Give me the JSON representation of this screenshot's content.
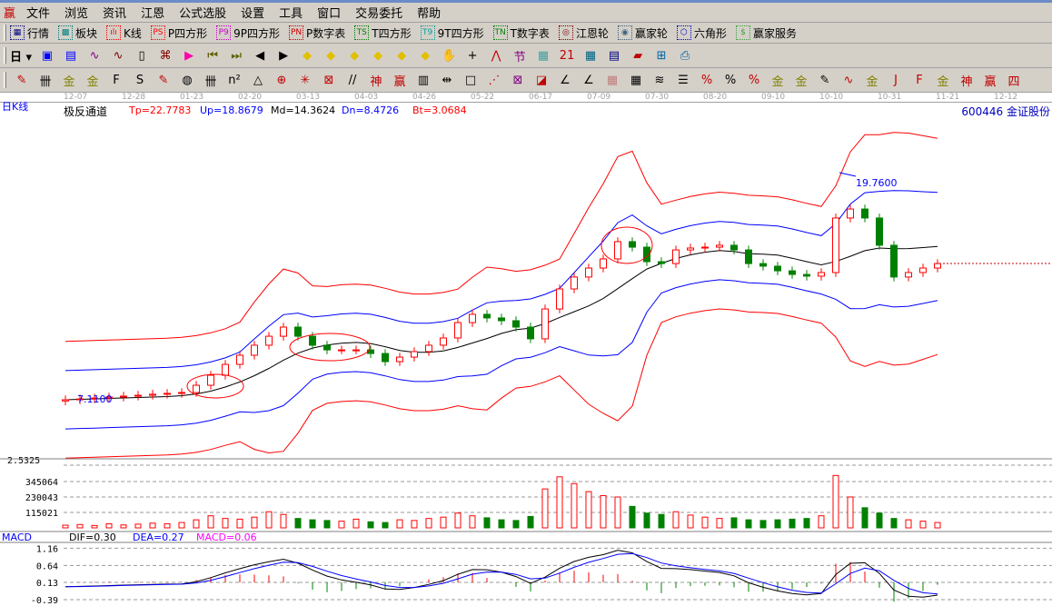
{
  "menu": {
    "logo": "赢",
    "items": [
      "文件",
      "浏览",
      "资讯",
      "江恩",
      "公式选股",
      "设置",
      "工具",
      "窗口",
      "交易委托",
      "帮助"
    ]
  },
  "toolbar1": [
    {
      "icon": "quotes-table-icon",
      "glyph": "▦",
      "label": "行情",
      "color": "#000080"
    },
    {
      "icon": "sector-block-icon",
      "glyph": "▩",
      "label": "板块",
      "color": "#008080"
    },
    {
      "icon": "kline-icon",
      "glyph": "ılı",
      "label": "K线",
      "color": "#ff0000"
    },
    {
      "icon": "ps-icon",
      "glyph": "PS",
      "label": "P四方形",
      "color": "#ff0000"
    },
    {
      "icon": "p9-icon",
      "glyph": "P9",
      "label": "9P四方形",
      "color": "#cc00cc"
    },
    {
      "icon": "pn-icon",
      "glyph": "PN",
      "label": "P数字表",
      "color": "#cc0000"
    },
    {
      "icon": "ts-icon",
      "glyph": "TS",
      "label": "T四方形",
      "color": "#008000"
    },
    {
      "icon": "t9-icon",
      "glyph": "T9",
      "label": "9T四方形",
      "color": "#00a0a0"
    },
    {
      "icon": "tn-icon",
      "glyph": "TN",
      "label": "T数字表",
      "color": "#008000"
    },
    {
      "icon": "gann-wheel-icon",
      "glyph": "◎",
      "label": "江恩轮",
      "color": "#800000"
    },
    {
      "icon": "winner-wheel-icon",
      "glyph": "◉",
      "label": "赢家轮",
      "color": "#406080"
    },
    {
      "icon": "hexagon-icon",
      "glyph": "⬡",
      "label": "六角形",
      "color": "#0000c0"
    },
    {
      "icon": "dollar-icon",
      "glyph": "$",
      "label": "赢家服务",
      "color": "#40a040"
    }
  ],
  "toolbar2": {
    "period": "日",
    "icons": [
      {
        "icon": "chart-type-icon",
        "glyph": "▣",
        "color": "#0000ff"
      },
      {
        "icon": "notes-icon",
        "glyph": "▤",
        "color": "#0000ff"
      },
      {
        "icon": "indicator3-icon",
        "glyph": "∿",
        "color": "#800080"
      },
      {
        "icon": "indicator9-icon",
        "glyph": "∿",
        "color": "#800000"
      },
      {
        "icon": "candle-style-icon",
        "glyph": "▯",
        "color": "#000"
      },
      {
        "icon": "restore-icon",
        "glyph": "⌘",
        "color": "#800000"
      },
      {
        "icon": "flag-icon",
        "glyph": "▶",
        "color": "#ff00aa"
      },
      {
        "icon": "first-icon",
        "glyph": "⏮",
        "color": "#606000"
      },
      {
        "icon": "last-icon",
        "glyph": "⏭",
        "color": "#606000"
      },
      {
        "icon": "prev-icon",
        "glyph": "◀",
        "color": "#000"
      },
      {
        "icon": "next-icon",
        "glyph": "▶",
        "color": "#000"
      },
      {
        "icon": "move-left-icon",
        "glyph": "◆",
        "color": "#e0c000"
      },
      {
        "icon": "move-right-icon",
        "glyph": "◆",
        "color": "#e0c000"
      },
      {
        "icon": "expand-icon",
        "glyph": "◆",
        "color": "#e0c000"
      },
      {
        "icon": "shrink-icon",
        "glyph": "◆",
        "color": "#e0c000"
      },
      {
        "icon": "zoom-in-icon",
        "glyph": "◆",
        "color": "#e0c000"
      },
      {
        "icon": "zoom-out-icon",
        "glyph": "◆",
        "color": "#e0c000"
      },
      {
        "icon": "hand-icon",
        "glyph": "✋",
        "color": "#000"
      },
      {
        "icon": "crosshair-icon",
        "glyph": "+",
        "color": "#000"
      },
      {
        "icon": "line-icon",
        "glyph": "⋀",
        "color": "#c00000"
      },
      {
        "icon": "festival-icon",
        "glyph": "节",
        "color": "#800080"
      },
      {
        "icon": "pattern-icon",
        "glyph": "▦",
        "color": "#40a0a0"
      },
      {
        "icon": "calendar-icon",
        "glyph": "21",
        "color": "#c00000"
      },
      {
        "icon": "calculator-icon",
        "glyph": "▦",
        "color": "#006080"
      },
      {
        "icon": "document-icon",
        "glyph": "▤",
        "color": "#000080"
      },
      {
        "icon": "save-icon",
        "glyph": "▰",
        "color": "#c00000"
      },
      {
        "icon": "network-icon",
        "glyph": "⊞",
        "color": "#0060a0"
      },
      {
        "icon": "print-icon",
        "glyph": "⎙",
        "color": "#0060a0"
      }
    ]
  },
  "toolbar3": [
    {
      "icon": "pen-icon",
      "glyph": "✎",
      "color": "#c00000"
    },
    {
      "icon": "parallel-icon",
      "glyph": "卌",
      "color": "#000"
    },
    {
      "icon": "gold-line-icon",
      "glyph": "金",
      "color": "#808000"
    },
    {
      "icon": "gold-line2-icon",
      "glyph": "金",
      "color": "#808000"
    },
    {
      "icon": "f-line-icon",
      "glyph": "F",
      "color": "#000"
    },
    {
      "icon": "spiral-icon",
      "glyph": "S",
      "color": "#000"
    },
    {
      "icon": "brush-icon",
      "glyph": "✎",
      "color": "#c00000"
    },
    {
      "icon": "circle-icon",
      "glyph": "◍",
      "color": "#000"
    },
    {
      "icon": "grid-lines-icon",
      "glyph": "卌",
      "color": "#000"
    },
    {
      "icon": "n2-icon",
      "glyph": "n²",
      "color": "#000"
    },
    {
      "icon": "triangle-icon",
      "glyph": "△",
      "color": "#000"
    },
    {
      "icon": "target-icon",
      "glyph": "⊕",
      "color": "#c00000"
    },
    {
      "icon": "web-icon",
      "glyph": "✳",
      "color": "#c00000"
    },
    {
      "icon": "box-web-icon",
      "glyph": "⊠",
      "color": "#c00000"
    },
    {
      "icon": "quote-lines-icon",
      "glyph": "//",
      "color": "#000"
    },
    {
      "icon": "god-icon",
      "glyph": "神",
      "color": "#c00000"
    },
    {
      "icon": "win-icon",
      "glyph": "赢",
      "color": "#c00000"
    },
    {
      "icon": "table-icon",
      "glyph": "▥",
      "color": "#000"
    },
    {
      "icon": "width-icon",
      "glyph": "⇹",
      "color": "#000"
    },
    {
      "icon": "box-icon",
      "glyph": "□",
      "color": "#000"
    },
    {
      "icon": "fan-icon",
      "glyph": "⋰",
      "color": "#c00000"
    },
    {
      "icon": "gann-box-icon",
      "glyph": "⊠",
      "color": "#800080"
    },
    {
      "icon": "gann-fan-icon",
      "glyph": "◪",
      "color": "#c00000"
    },
    {
      "icon": "angle-icon",
      "glyph": "∠",
      "color": "#000"
    },
    {
      "icon": "angle2-icon",
      "glyph": "∠",
      "color": "#000"
    },
    {
      "icon": "grid-icon",
      "glyph": "▦",
      "color": "#c08080"
    },
    {
      "icon": "grid2-icon",
      "glyph": "▦",
      "color": "#000"
    },
    {
      "icon": "hatch-icon",
      "glyph": "≋",
      "color": "#000"
    },
    {
      "icon": "ruler-icon",
      "glyph": "☰",
      "color": "#000"
    },
    {
      "icon": "percent-line-icon",
      "glyph": "%",
      "color": "#c00000"
    },
    {
      "icon": "percent-icon",
      "glyph": "%",
      "color": "#000"
    },
    {
      "icon": "percent-lines-icon",
      "glyph": "%",
      "color": "#c00000"
    },
    {
      "icon": "gold-circle-icon",
      "glyph": "金",
      "color": "#808000"
    },
    {
      "icon": "gold-lines-icon",
      "glyph": "金",
      "color": "#808000"
    },
    {
      "icon": "pen2-icon",
      "glyph": "✎",
      "color": "#000"
    },
    {
      "icon": "wave-icon",
      "glyph": "∿",
      "color": "#c00000"
    },
    {
      "icon": "gold-red-icon",
      "glyph": "金",
      "color": "#808000"
    },
    {
      "icon": "j-angle-icon",
      "glyph": "J",
      "color": "#c00000"
    },
    {
      "icon": "f-angle-icon",
      "glyph": "F",
      "color": "#c00000"
    },
    {
      "icon": "gold-angle-icon",
      "glyph": "金",
      "color": "#808000"
    },
    {
      "icon": "god-angle-icon",
      "glyph": "神",
      "color": "#c00000"
    },
    {
      "icon": "win-angle-icon",
      "glyph": "赢",
      "color": "#c00000"
    },
    {
      "icon": "four-angle-icon",
      "glyph": "四",
      "color": "#c00000"
    }
  ],
  "dates": [
    "12-07",
    "12-28",
    "01-23",
    "02-20",
    "03-13",
    "04-03",
    "04-26",
    "05-22",
    "06-17",
    "07-09",
    "07-30",
    "08-20",
    "09-10",
    "10-10",
    "10-31",
    "11-21",
    "12-12"
  ],
  "header": {
    "period": "日K线",
    "indicator": "极反通道",
    "tp": "Tp=22.7783",
    "up": "Up=18.8679",
    "md": "Md=14.3624",
    "dn": "Dn=8.4726",
    "bt": "Bt=3.0684",
    "stock": "600446 金证股份"
  },
  "colors": {
    "up": "#ff0000",
    "down": "#008000",
    "mid": "#000000",
    "inner": "#0000ff",
    "outer": "#ff0000",
    "toolbar": "#d4d0c8"
  },
  "chart_data": [
    {
      "type": "candlestick",
      "name": "日K线",
      "close": [
        7.11,
        7.16,
        7.21,
        7.27,
        7.32,
        7.37,
        7.43,
        7.48,
        7.53,
        7.95,
        8.53,
        9.16,
        9.69,
        10.27,
        10.79,
        11.32,
        10.79,
        10.27,
        10.0,
        10.0,
        10.0,
        9.79,
        9.32,
        9.58,
        9.9,
        10.27,
        10.69,
        11.58,
        12.06,
        11.85,
        11.69,
        11.32,
        10.64,
        12.37,
        13.53,
        14.22,
        14.74,
        15.27,
        16.27,
        15.95,
        15.11,
        15.0,
        15.79,
        15.9,
        15.95,
        16.06,
        15.79,
        15.0,
        14.85,
        14.58,
        14.37,
        14.27,
        14.48,
        17.64,
        18.16,
        17.64,
        16.06,
        14.22,
        14.48,
        14.74,
        15.0
      ],
      "annotations": [
        "7.1100",
        "19.7600"
      ]
    },
    {
      "type": "bar",
      "name": "VOL",
      "yticks": [
        "115021",
        "230043",
        "345064"
      ],
      "top_label": "2.5325",
      "values": [
        20000,
        25000,
        18000,
        30000,
        22000,
        28000,
        35000,
        30000,
        40000,
        60000,
        90000,
        70000,
        65000,
        80000,
        120000,
        100000,
        70000,
        60000,
        55000,
        50000,
        65000,
        45000,
        40000,
        60000,
        55000,
        70000,
        80000,
        110000,
        90000,
        75000,
        60000,
        55000,
        85000,
        290000,
        380000,
        330000,
        270000,
        240000,
        230000,
        160000,
        110000,
        100000,
        120000,
        95000,
        80000,
        70000,
        75000,
        60000,
        55000,
        60000,
        65000,
        70000,
        90000,
        390000,
        230000,
        150000,
        110000,
        70000,
        60000,
        50000,
        40000
      ]
    },
    {
      "type": "line",
      "name": "MACD",
      "labels": {
        "name": "MACD",
        "dif": "DIF=0.30",
        "dea": "DEA=0.27",
        "macd": "MACD=0.06"
      },
      "yticks": [
        "1.16",
        "0.64",
        "0.13",
        "-0.39"
      ],
      "ylim": [
        -0.6,
        1.3
      ]
    }
  ]
}
